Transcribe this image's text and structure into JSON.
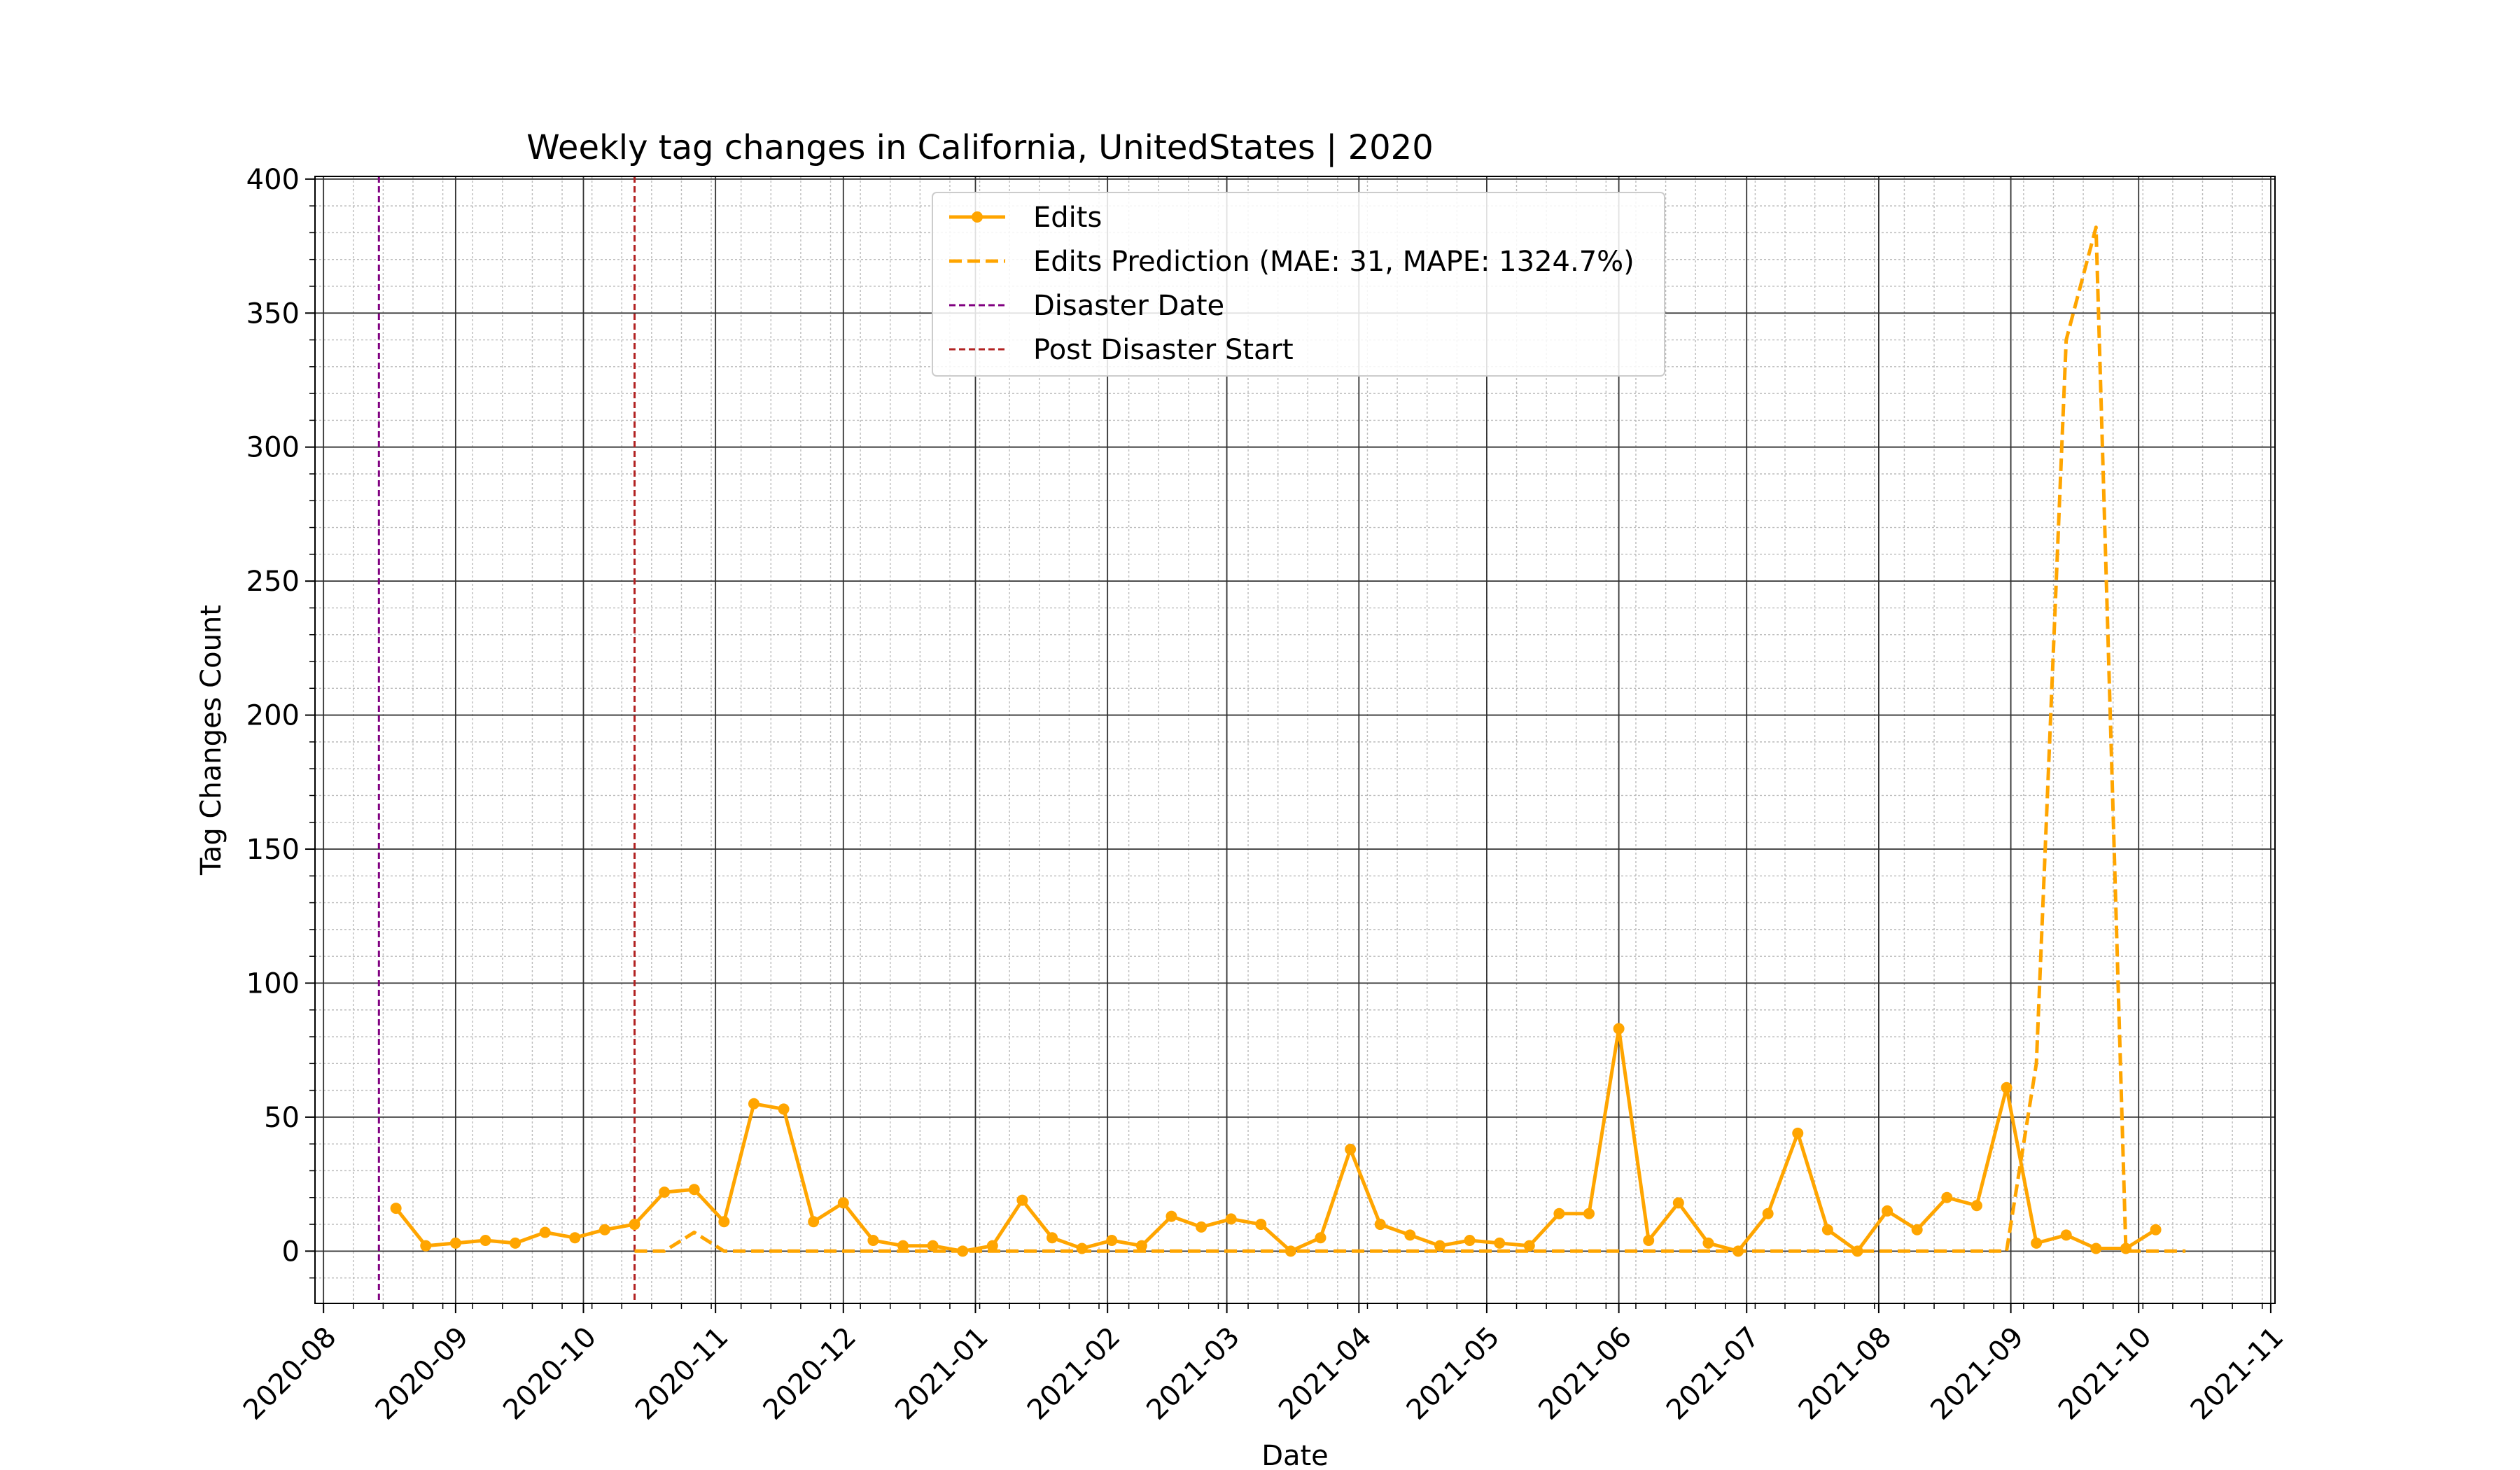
{
  "chart_data": {
    "type": "line",
    "title": "Weekly tag changes in California, UnitedStates | 2020",
    "xlabel": "Date",
    "ylabel": "Tag Changes Count",
    "x_axis": {
      "type": "date",
      "range": [
        "2020-07-30",
        "2021-11-02"
      ],
      "ticks": [
        "2020-08-01",
        "2020-09-01",
        "2020-10-01",
        "2020-11-01",
        "2020-12-01",
        "2021-01-01",
        "2021-02-01",
        "2021-03-01",
        "2021-04-01",
        "2021-05-01",
        "2021-06-01",
        "2021-07-01",
        "2021-08-01",
        "2021-09-01",
        "2021-10-01",
        "2021-11-01"
      ],
      "tick_labels": [
        "2020-08",
        "2020-09",
        "2020-10",
        "2020-11",
        "2020-12",
        "2021-01",
        "2021-02",
        "2021-03",
        "2021-04",
        "2021-05",
        "2021-06",
        "2021-07",
        "2021-08",
        "2021-09",
        "2021-10",
        "2021-11"
      ]
    },
    "y_axis": {
      "range": [
        -19.5,
        401
      ],
      "ticks": [
        0,
        50,
        100,
        150,
        200,
        250,
        300,
        350,
        400
      ],
      "tick_labels": [
        "0",
        "50",
        "100",
        "150",
        "200",
        "250",
        "300",
        "350",
        "400"
      ]
    },
    "grid": true,
    "legend_position": "top-center",
    "series": [
      {
        "name": "Edits",
        "style": "solid-with-markers",
        "color": "#FFA500",
        "x": [
          "2020-08-18",
          "2020-08-25",
          "2020-09-01",
          "2020-09-08",
          "2020-09-15",
          "2020-09-22",
          "2020-09-29",
          "2020-10-06",
          "2020-10-13",
          "2020-10-20",
          "2020-10-27",
          "2020-11-03",
          "2020-11-10",
          "2020-11-17",
          "2020-11-24",
          "2020-12-01",
          "2020-12-08",
          "2020-12-15",
          "2020-12-22",
          "2020-12-29",
          "2021-01-05",
          "2021-01-12",
          "2021-01-19",
          "2021-01-26",
          "2021-02-02",
          "2021-02-09",
          "2021-02-16",
          "2021-02-23",
          "2021-03-02",
          "2021-03-09",
          "2021-03-16",
          "2021-03-23",
          "2021-03-30",
          "2021-04-06",
          "2021-04-13",
          "2021-04-20",
          "2021-04-27",
          "2021-05-04",
          "2021-05-11",
          "2021-05-18",
          "2021-05-25",
          "2021-06-01",
          "2021-06-08",
          "2021-06-15",
          "2021-06-22",
          "2021-06-29",
          "2021-07-06",
          "2021-07-13",
          "2021-07-20",
          "2021-07-27",
          "2021-08-03",
          "2021-08-10",
          "2021-08-17",
          "2021-08-24",
          "2021-08-31",
          "2021-09-07",
          "2021-09-14",
          "2021-09-21",
          "2021-09-28",
          "2021-10-05"
        ],
        "values": [
          16,
          2,
          3,
          4,
          3,
          7,
          5,
          8,
          10,
          22,
          23,
          11,
          55,
          53,
          11,
          18,
          4,
          2,
          2,
          0,
          2,
          19,
          5,
          1,
          4,
          2,
          13,
          9,
          12,
          10,
          0,
          5,
          38,
          10,
          6,
          2,
          4,
          3,
          2,
          14,
          14,
          83,
          4,
          18,
          3,
          0,
          14,
          44,
          8,
          0,
          15,
          8,
          20,
          17,
          61,
          3,
          6,
          1,
          1,
          8
        ]
      },
      {
        "name": "Edits Prediction (MAE: 31, MAPE: 1324.7%)",
        "style": "dashed",
        "color": "#FFA500",
        "x": [
          "2020-10-13",
          "2020-10-20",
          "2020-10-27",
          "2020-11-03",
          "2020-11-10",
          "2020-11-17",
          "2020-11-24",
          "2020-12-01",
          "2020-12-08",
          "2020-12-15",
          "2020-12-22",
          "2020-12-29",
          "2021-01-05",
          "2021-01-12",
          "2021-01-19",
          "2021-01-26",
          "2021-02-02",
          "2021-02-09",
          "2021-02-16",
          "2021-02-23",
          "2021-03-02",
          "2021-03-09",
          "2021-03-16",
          "2021-03-23",
          "2021-03-30",
          "2021-04-06",
          "2021-04-13",
          "2021-04-20",
          "2021-04-27",
          "2021-05-04",
          "2021-05-11",
          "2021-05-18",
          "2021-05-25",
          "2021-06-01",
          "2021-06-08",
          "2021-06-15",
          "2021-06-22",
          "2021-06-29",
          "2021-07-06",
          "2021-07-13",
          "2021-07-20",
          "2021-07-27",
          "2021-08-03",
          "2021-08-10",
          "2021-08-17",
          "2021-08-24",
          "2021-08-31",
          "2021-09-07",
          "2021-09-14",
          "2021-09-21",
          "2021-09-28",
          "2021-10-05",
          "2021-10-12"
        ],
        "values": [
          0,
          0,
          7,
          0,
          0,
          0,
          0,
          0,
          0,
          0,
          0,
          0,
          0,
          0,
          0,
          0,
          0,
          0,
          0,
          0,
          0,
          0,
          0,
          0,
          0,
          0,
          0,
          0,
          0,
          0,
          0,
          0,
          0,
          0,
          0,
          0,
          0,
          0,
          0,
          0,
          0,
          0,
          0,
          0,
          0,
          0,
          0,
          70,
          340,
          382,
          0,
          0,
          0
        ]
      }
    ],
    "vertical_lines": [
      {
        "name": "Disaster Date",
        "x": "2020-08-14",
        "color": "#800080",
        "style": "dashed"
      },
      {
        "name": "Post Disaster Start",
        "x": "2020-10-13",
        "color": "#B22222",
        "style": "dashed"
      }
    ]
  }
}
